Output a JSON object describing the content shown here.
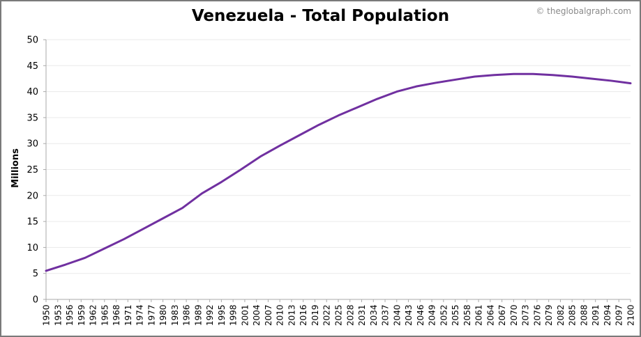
{
  "header": {
    "title": "Venezuela - Total Population",
    "credit": "© theglobalgraph.com"
  },
  "chart_data": {
    "type": "line",
    "title": "Venezuela - Total Population",
    "xlabel": "",
    "ylabel": "Millions",
    "ylim": [
      0,
      50
    ],
    "yticks": [
      0,
      5,
      10,
      15,
      20,
      25,
      30,
      35,
      40,
      45,
      50
    ],
    "xlim": [
      1950,
      2100
    ],
    "xtick_labels": [
      "1950",
      "1953",
      "1956",
      "1959",
      "1962",
      "1965",
      "1968",
      "1971",
      "1974",
      "1977",
      "1980",
      "1983",
      "1986",
      "1989",
      "1992",
      "1995",
      "1998",
      "2001",
      "2004",
      "2007",
      "2010",
      "2013",
      "2016",
      "2019",
      "2022",
      "2025",
      "2028",
      "2031",
      "2034",
      "2037",
      "2040",
      "2043",
      "2046",
      "2049",
      "2052",
      "2055",
      "2058",
      "2061",
      "2064",
      "2067",
      "2070",
      "2073",
      "2076",
      "2079",
      "2082",
      "2085",
      "2088",
      "2091",
      "2094",
      "2097",
      "2100"
    ],
    "grid": true,
    "line_color": "#7030a0",
    "series": [
      {
        "x": [
          1950,
          1955,
          1960,
          1965,
          1970,
          1975,
          1980,
          1985,
          1990,
          1995,
          2000,
          2005,
          2010,
          2015,
          2020,
          2025,
          2030,
          2035,
          2040,
          2045,
          2050,
          2055,
          2060,
          2065,
          2070,
          2075,
          2080,
          2085,
          2090,
          2095,
          2100
        ],
        "values": [
          5.5,
          6.7,
          8.0,
          9.8,
          11.6,
          13.6,
          15.6,
          17.6,
          20.4,
          22.6,
          25.0,
          27.5,
          29.6,
          31.6,
          33.6,
          35.4,
          37.0,
          38.6,
          40.0,
          41.0,
          41.7,
          42.3,
          42.9,
          43.2,
          43.4,
          43.4,
          43.2,
          42.9,
          42.5,
          42.1,
          41.6
        ]
      }
    ]
  }
}
